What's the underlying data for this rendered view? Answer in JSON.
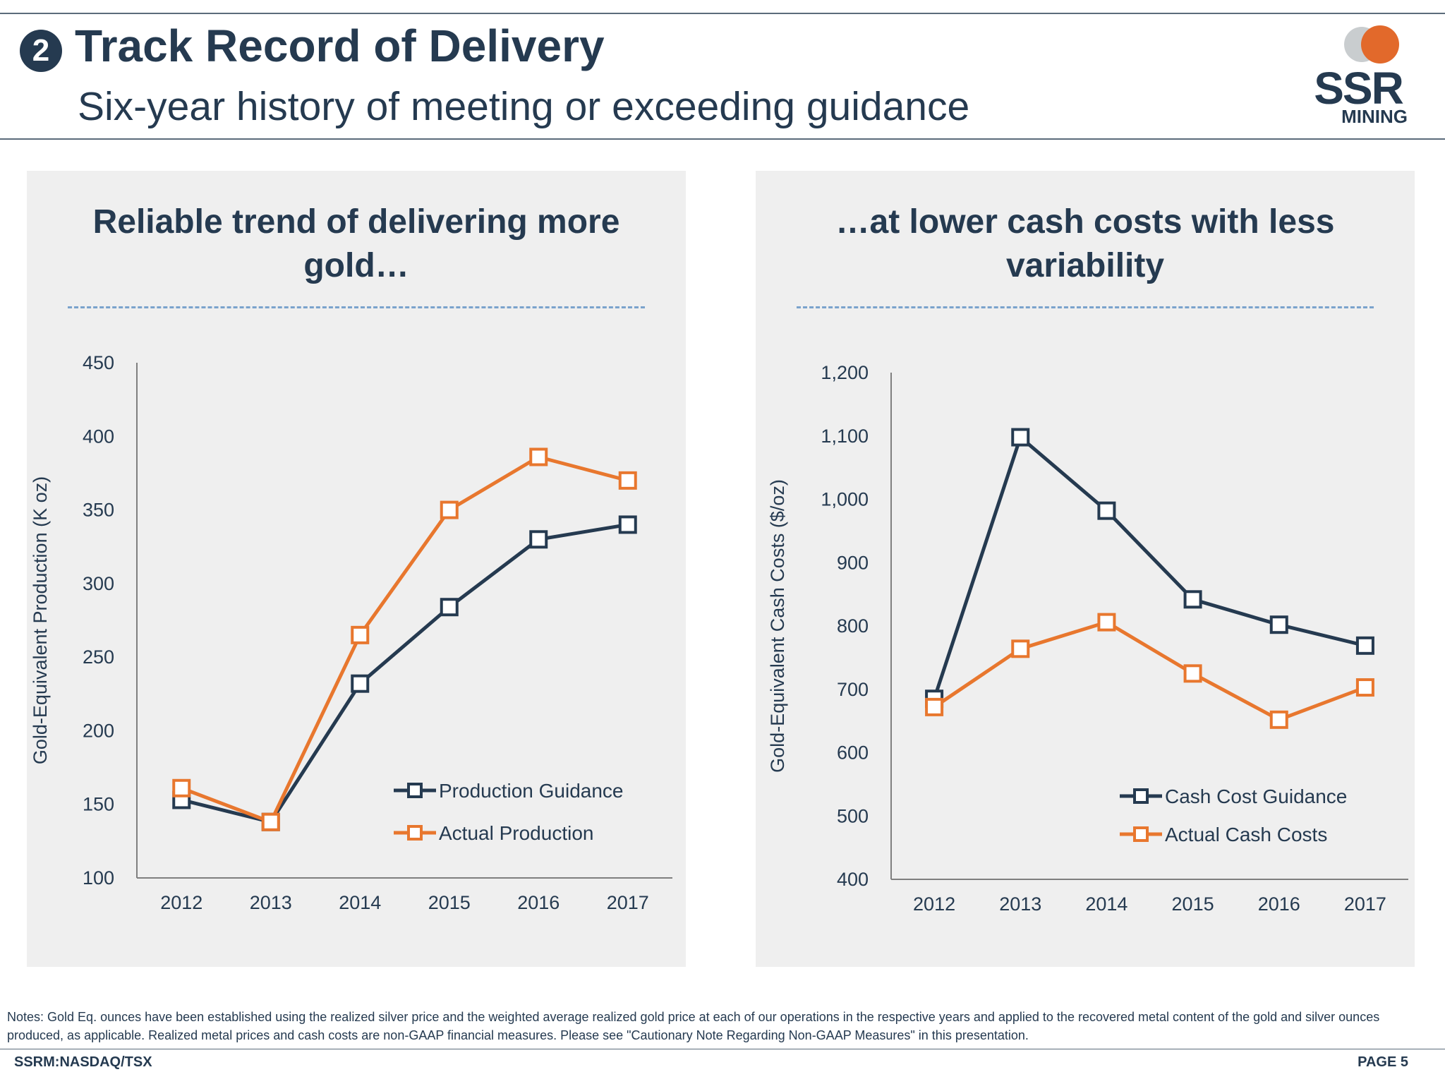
{
  "header": {
    "number": "2",
    "title": "Track Record of Delivery",
    "subtitle": "Six-year history of meeting or exceeding guidance"
  },
  "logo": {
    "top": "SSR",
    "bottom": "MINING"
  },
  "colors": {
    "navy": "#253a50",
    "orange": "#e8772e",
    "panel": "#efefef",
    "dash": "#7aa3cc"
  },
  "chart_data": [
    {
      "type": "line",
      "title": "Reliable trend of delivering more gold…",
      "xlabel": "",
      "ylabel": "Gold-Equivalent Production (K oz)",
      "categories": [
        "2012",
        "2013",
        "2014",
        "2015",
        "2016",
        "2017"
      ],
      "ylim": [
        100,
        450
      ],
      "yticks": [
        100,
        150,
        200,
        250,
        300,
        350,
        400,
        450
      ],
      "ytick_labels": [
        "100",
        "150",
        "200",
        "250",
        "300",
        "350",
        "400",
        "450"
      ],
      "series": [
        {
          "name": "Production Guidance",
          "color": "#253a50",
          "values": [
            153,
            138,
            232,
            284,
            330,
            340
          ]
        },
        {
          "name": "Actual Production",
          "color": "#e8772e",
          "values": [
            161,
            138,
            265,
            350,
            386,
            370
          ]
        }
      ],
      "legend": "bottom-right"
    },
    {
      "type": "line",
      "title": "…at lower cash costs with less variability",
      "xlabel": "",
      "ylabel": "Gold-Equivalent Cash Costs ($/oz)",
      "categories": [
        "2012",
        "2013",
        "2014",
        "2015",
        "2016",
        "2017"
      ],
      "ylim": [
        400,
        1200
      ],
      "yticks": [
        400,
        500,
        600,
        700,
        800,
        900,
        1000,
        1100,
        1200
      ],
      "ytick_labels": [
        "400",
        "500",
        "600",
        "700",
        "800",
        "900",
        "1,000",
        "1,100",
        "1,200"
      ],
      "series": [
        {
          "name": "Cash Cost Guidance",
          "color": "#253a50",
          "values": [
            685,
            1098,
            982,
            842,
            802,
            769
          ]
        },
        {
          "name": "Actual Cash Costs",
          "color": "#e8772e",
          "values": [
            672,
            764,
            806,
            725,
            652,
            703
          ]
        }
      ],
      "legend": "bottom-right"
    }
  ],
  "notes": "Notes: Gold Eq. ounces have been established using the realized silver price and the weighted average realized gold price at each of our operations in the respective years and applied to the recovered metal content of the gold and silver ounces produced, as applicable. Realized metal prices and cash costs are non-GAAP financial measures. Please see \"Cautionary Note Regarding Non-GAAP Measures\" in this presentation.",
  "footer": {
    "ticker": "SSRM:NASDAQ/TSX",
    "page": "PAGE 5"
  }
}
